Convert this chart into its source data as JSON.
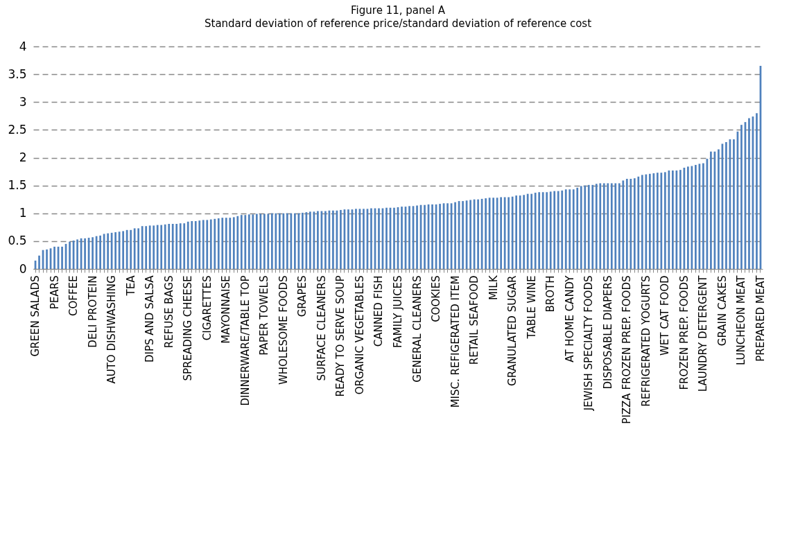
{
  "chart_data": {
    "type": "bar",
    "title": "Figure 11, panel A",
    "subtitle": "Standard deviation of reference price/standard deviation of reference cost",
    "categories": [
      "GREEN SALADS",
      null,
      null,
      null,
      null,
      "PEARS",
      null,
      null,
      null,
      null,
      "COFFEE",
      null,
      null,
      null,
      null,
      "DELI PROTEIN",
      null,
      null,
      null,
      null,
      "AUTO DISHWASHING",
      null,
      null,
      null,
      null,
      "TEA",
      null,
      null,
      null,
      null,
      "DIPS AND SALSA",
      null,
      null,
      null,
      null,
      "REFUSE BAGS",
      null,
      null,
      null,
      null,
      "SPREADING CHEESE",
      null,
      null,
      null,
      null,
      "CIGARETTES",
      null,
      null,
      null,
      null,
      "MAYONNAISE",
      null,
      null,
      null,
      null,
      "DINNERWARE/TABLE TOP",
      null,
      null,
      null,
      null,
      "PAPER TOWELS",
      null,
      null,
      null,
      null,
      "WHOLESOME FOODS",
      null,
      null,
      null,
      null,
      "GRAPES",
      null,
      null,
      null,
      null,
      "SURFACE CLEANERS",
      null,
      null,
      null,
      null,
      "READY TO SERVE SOUP",
      null,
      null,
      null,
      null,
      "ORGANIC VEGETABLES",
      null,
      null,
      null,
      null,
      "CANNED FISH",
      null,
      null,
      null,
      null,
      "FAMILY JUICES",
      null,
      null,
      null,
      null,
      "GENERAL CLEANERS",
      null,
      null,
      null,
      null,
      "COOKIES",
      null,
      null,
      null,
      null,
      "MISC. REFIGERATED ITEM",
      null,
      null,
      null,
      null,
      "RETAIL SEAFOOD",
      null,
      null,
      null,
      null,
      "MILK",
      null,
      null,
      null,
      null,
      "GRANULATED SUGAR",
      null,
      null,
      null,
      null,
      "TABLE WINE",
      null,
      null,
      null,
      null,
      "BROTH",
      null,
      null,
      null,
      null,
      "AT HOME CANDY",
      null,
      null,
      null,
      null,
      "JEWISH SPECIALTY FOODS",
      null,
      null,
      null,
      null,
      "DISPOSABLE DIAPERS",
      null,
      null,
      null,
      null,
      "PIZZA FROZEN PREP. FOODS",
      null,
      null,
      null,
      null,
      "REFRIGERATED YOGURTS",
      null,
      null,
      null,
      null,
      "WET CAT FOOD",
      null,
      null,
      null,
      null,
      "FROZEN PREP. FOODS",
      null,
      null,
      null,
      null,
      "LAUNDRY DETERGENT",
      null,
      null,
      null,
      null,
      "GRAIN CAKES",
      null,
      null,
      null,
      null,
      "LUNCHEON MEAT",
      null,
      null,
      null,
      null,
      "PREPARED MEAT"
    ],
    "values": [
      0.15,
      0.24,
      0.34,
      0.35,
      0.37,
      0.4,
      0.4,
      0.4,
      0.45,
      0.49,
      0.51,
      0.53,
      0.55,
      0.55,
      0.56,
      0.57,
      0.59,
      0.6,
      0.63,
      0.64,
      0.65,
      0.66,
      0.67,
      0.68,
      0.7,
      0.7,
      0.73,
      0.73,
      0.77,
      0.77,
      0.78,
      0.78,
      0.79,
      0.79,
      0.8,
      0.81,
      0.81,
      0.81,
      0.82,
      0.82,
      0.85,
      0.86,
      0.86,
      0.87,
      0.88,
      0.88,
      0.89,
      0.9,
      0.91,
      0.92,
      0.92,
      0.92,
      0.93,
      0.95,
      0.97,
      0.97,
      0.98,
      0.98,
      0.99,
      0.99,
      0.99,
      0.99,
      1.0,
      1.0,
      1.0,
      1.0,
      1.0,
      1.0,
      1.0,
      1.0,
      1.01,
      1.02,
      1.03,
      1.03,
      1.04,
      1.04,
      1.04,
      1.05,
      1.05,
      1.05,
      1.06,
      1.07,
      1.07,
      1.07,
      1.08,
      1.08,
      1.08,
      1.08,
      1.09,
      1.09,
      1.09,
      1.09,
      1.1,
      1.1,
      1.1,
      1.11,
      1.12,
      1.12,
      1.13,
      1.13,
      1.14,
      1.15,
      1.15,
      1.16,
      1.16,
      1.16,
      1.17,
      1.18,
      1.18,
      1.18,
      1.2,
      1.22,
      1.22,
      1.23,
      1.24,
      1.25,
      1.25,
      1.26,
      1.27,
      1.28,
      1.28,
      1.28,
      1.29,
      1.29,
      1.29,
      1.3,
      1.32,
      1.32,
      1.33,
      1.35,
      1.35,
      1.37,
      1.38,
      1.38,
      1.38,
      1.39,
      1.4,
      1.4,
      1.41,
      1.43,
      1.43,
      1.43,
      1.46,
      1.49,
      1.5,
      1.51,
      1.51,
      1.53,
      1.54,
      1.54,
      1.54,
      1.54,
      1.54,
      1.54,
      1.59,
      1.62,
      1.62,
      1.63,
      1.66,
      1.69,
      1.7,
      1.71,
      1.72,
      1.73,
      1.73,
      1.74,
      1.77,
      1.77,
      1.77,
      1.78,
      1.82,
      1.84,
      1.85,
      1.87,
      1.89,
      1.9,
      1.98,
      2.11,
      2.11,
      2.15,
      2.25,
      2.28,
      2.33,
      2.33,
      2.47,
      2.59,
      2.64,
      2.71,
      2.74,
      2.8,
      3.65
    ],
    "color": "#4f81bd",
    "ylim": [
      0,
      4
    ],
    "yticks": [
      0,
      0.5,
      1,
      1.5,
      2,
      2.5,
      3,
      3.5,
      4
    ],
    "grid": "y"
  }
}
